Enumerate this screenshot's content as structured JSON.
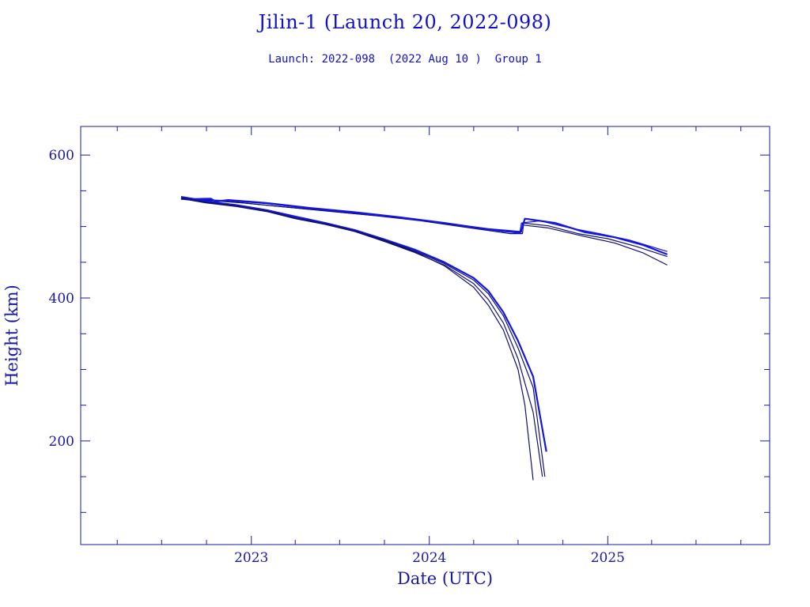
{
  "chart_data": {
    "type": "line",
    "title": "Jilin-1 (Launch 20, 2022-098)",
    "subtitle": "Launch: 2022-098  (2022 Aug 10 )  Group 1",
    "xlabel": "Date (UTC)",
    "ylabel": "Height (km)",
    "xlim": [
      "2022-01-16",
      "2025-11-29"
    ],
    "ylim": [
      55,
      640
    ],
    "x_ticks": [
      "2023",
      "2024",
      "2025"
    ],
    "y_ticks": [
      "200",
      "400",
      "600"
    ],
    "grid": false,
    "colors": {
      "frame": "#1a1aa0",
      "text": "#1818a8",
      "title": "#1010c8",
      "series_bright": "#1515e0",
      "series_dark": "#101070"
    },
    "series": [
      {
        "color": "#101070",
        "width": 1.2,
        "points": [
          [
            "2022-08-10",
            540
          ],
          [
            "2022-10-01",
            537
          ],
          [
            "2022-12-01",
            534
          ],
          [
            "2023-03-01",
            528
          ],
          [
            "2023-06-01",
            522
          ],
          [
            "2023-09-01",
            516
          ],
          [
            "2023-12-01",
            510
          ],
          [
            "2024-03-01",
            502
          ],
          [
            "2024-06-01",
            493
          ],
          [
            "2024-07-08",
            492
          ],
          [
            "2024-07-10",
            505
          ],
          [
            "2024-09-01",
            501
          ],
          [
            "2024-11-01",
            490
          ],
          [
            "2025-01-01",
            483
          ],
          [
            "2025-03-01",
            472
          ],
          [
            "2025-05-03",
            458
          ]
        ]
      },
      {
        "color": "#101070",
        "width": 1.2,
        "points": [
          [
            "2022-08-10",
            538
          ],
          [
            "2022-10-15",
            536
          ],
          [
            "2022-12-15",
            533
          ],
          [
            "2023-03-15",
            527
          ],
          [
            "2023-06-15",
            521
          ],
          [
            "2023-09-15",
            515
          ],
          [
            "2023-12-15",
            508
          ],
          [
            "2024-03-15",
            499
          ],
          [
            "2024-06-15",
            490
          ],
          [
            "2024-07-10",
            490
          ],
          [
            "2024-07-12",
            502
          ],
          [
            "2024-09-01",
            498
          ],
          [
            "2024-11-15",
            486
          ],
          [
            "2025-01-15",
            477
          ],
          [
            "2025-03-15",
            463
          ],
          [
            "2025-05-03",
            446
          ]
        ]
      },
      {
        "color": "#1515e0",
        "width": 1.2,
        "points": [
          [
            "2022-08-10",
            542
          ],
          [
            "2022-09-15",
            538
          ],
          [
            "2022-11-15",
            536
          ],
          [
            "2023-02-01",
            532
          ],
          [
            "2023-05-01",
            525
          ],
          [
            "2023-08-01",
            519
          ],
          [
            "2023-11-01",
            512
          ],
          [
            "2024-02-01",
            505
          ],
          [
            "2024-05-01",
            497
          ],
          [
            "2024-07-05",
            493
          ],
          [
            "2024-07-08",
            505
          ],
          [
            "2024-08-15",
            508
          ],
          [
            "2024-10-15",
            498
          ],
          [
            "2024-12-15",
            490
          ],
          [
            "2025-02-15",
            481
          ],
          [
            "2025-05-03",
            465
          ]
        ]
      },
      {
        "color": "#1515e0",
        "width": 2.2,
        "points": [
          [
            "2022-08-10",
            540
          ],
          [
            "2022-08-20",
            538
          ],
          [
            "2022-10-10",
            539
          ],
          [
            "2022-10-20",
            535
          ],
          [
            "2022-11-15",
            537
          ],
          [
            "2023-02-01",
            533
          ],
          [
            "2023-05-01",
            526
          ],
          [
            "2023-08-01",
            520
          ],
          [
            "2023-11-01",
            513
          ],
          [
            "2024-02-01",
            505
          ],
          [
            "2024-05-01",
            496
          ],
          [
            "2024-07-05",
            491
          ],
          [
            "2024-07-10",
            500
          ],
          [
            "2024-07-15",
            511
          ],
          [
            "2024-09-15",
            505
          ],
          [
            "2024-11-15",
            492
          ],
          [
            "2025-01-15",
            485
          ],
          [
            "2025-03-15",
            474
          ],
          [
            "2025-05-03",
            461
          ]
        ]
      },
      {
        "color": "#101070",
        "width": 1.2,
        "points": [
          [
            "2022-08-10",
            540
          ],
          [
            "2022-10-01",
            534
          ],
          [
            "2022-12-01",
            530
          ],
          [
            "2023-02-01",
            522
          ],
          [
            "2023-04-01",
            512
          ],
          [
            "2023-06-01",
            504
          ],
          [
            "2023-08-01",
            494
          ],
          [
            "2023-10-01",
            480
          ],
          [
            "2023-12-01",
            465
          ],
          [
            "2024-02-01",
            445
          ],
          [
            "2024-04-01",
            415
          ],
          [
            "2024-05-01",
            390
          ],
          [
            "2024-06-01",
            355
          ],
          [
            "2024-07-01",
            300
          ],
          [
            "2024-07-15",
            250
          ],
          [
            "2024-08-01",
            145
          ]
        ]
      },
      {
        "color": "#101070",
        "width": 1.2,
        "points": [
          [
            "2022-08-10",
            539
          ],
          [
            "2022-10-01",
            533
          ],
          [
            "2022-12-01",
            528
          ],
          [
            "2023-02-01",
            521
          ],
          [
            "2023-04-01",
            511
          ],
          [
            "2023-06-01",
            503
          ],
          [
            "2023-08-01",
            493
          ],
          [
            "2023-10-01",
            479
          ],
          [
            "2023-12-01",
            464
          ],
          [
            "2024-02-01",
            446
          ],
          [
            "2024-04-01",
            420
          ],
          [
            "2024-05-01",
            398
          ],
          [
            "2024-06-01",
            365
          ],
          [
            "2024-07-01",
            315
          ],
          [
            "2024-08-01",
            240
          ],
          [
            "2024-08-20",
            150
          ]
        ]
      },
      {
        "color": "#1515e0",
        "width": 2.2,
        "points": [
          [
            "2022-08-10",
            541
          ],
          [
            "2022-10-01",
            535
          ],
          [
            "2022-12-01",
            530
          ],
          [
            "2023-02-01",
            523
          ],
          [
            "2023-04-01",
            514
          ],
          [
            "2023-06-01",
            505
          ],
          [
            "2023-08-01",
            495
          ],
          [
            "2023-10-01",
            482
          ],
          [
            "2023-12-01",
            468
          ],
          [
            "2024-02-01",
            450
          ],
          [
            "2024-04-01",
            428
          ],
          [
            "2024-05-01",
            410
          ],
          [
            "2024-06-01",
            380
          ],
          [
            "2024-07-01",
            340
          ],
          [
            "2024-08-01",
            290
          ],
          [
            "2024-08-28",
            185
          ]
        ]
      },
      {
        "color": "#101070",
        "width": 1.2,
        "points": [
          [
            "2022-08-10",
            540
          ],
          [
            "2022-10-01",
            534
          ],
          [
            "2022-12-01",
            529
          ],
          [
            "2023-02-01",
            522
          ],
          [
            "2023-04-01",
            512
          ],
          [
            "2023-06-01",
            504
          ],
          [
            "2023-08-01",
            494
          ],
          [
            "2023-10-01",
            481
          ],
          [
            "2023-12-01",
            466
          ],
          [
            "2024-02-01",
            448
          ],
          [
            "2024-04-01",
            425
          ],
          [
            "2024-05-01",
            406
          ],
          [
            "2024-06-01",
            375
          ],
          [
            "2024-07-01",
            330
          ],
          [
            "2024-08-01",
            275
          ],
          [
            "2024-08-25",
            150
          ]
        ]
      }
    ]
  }
}
